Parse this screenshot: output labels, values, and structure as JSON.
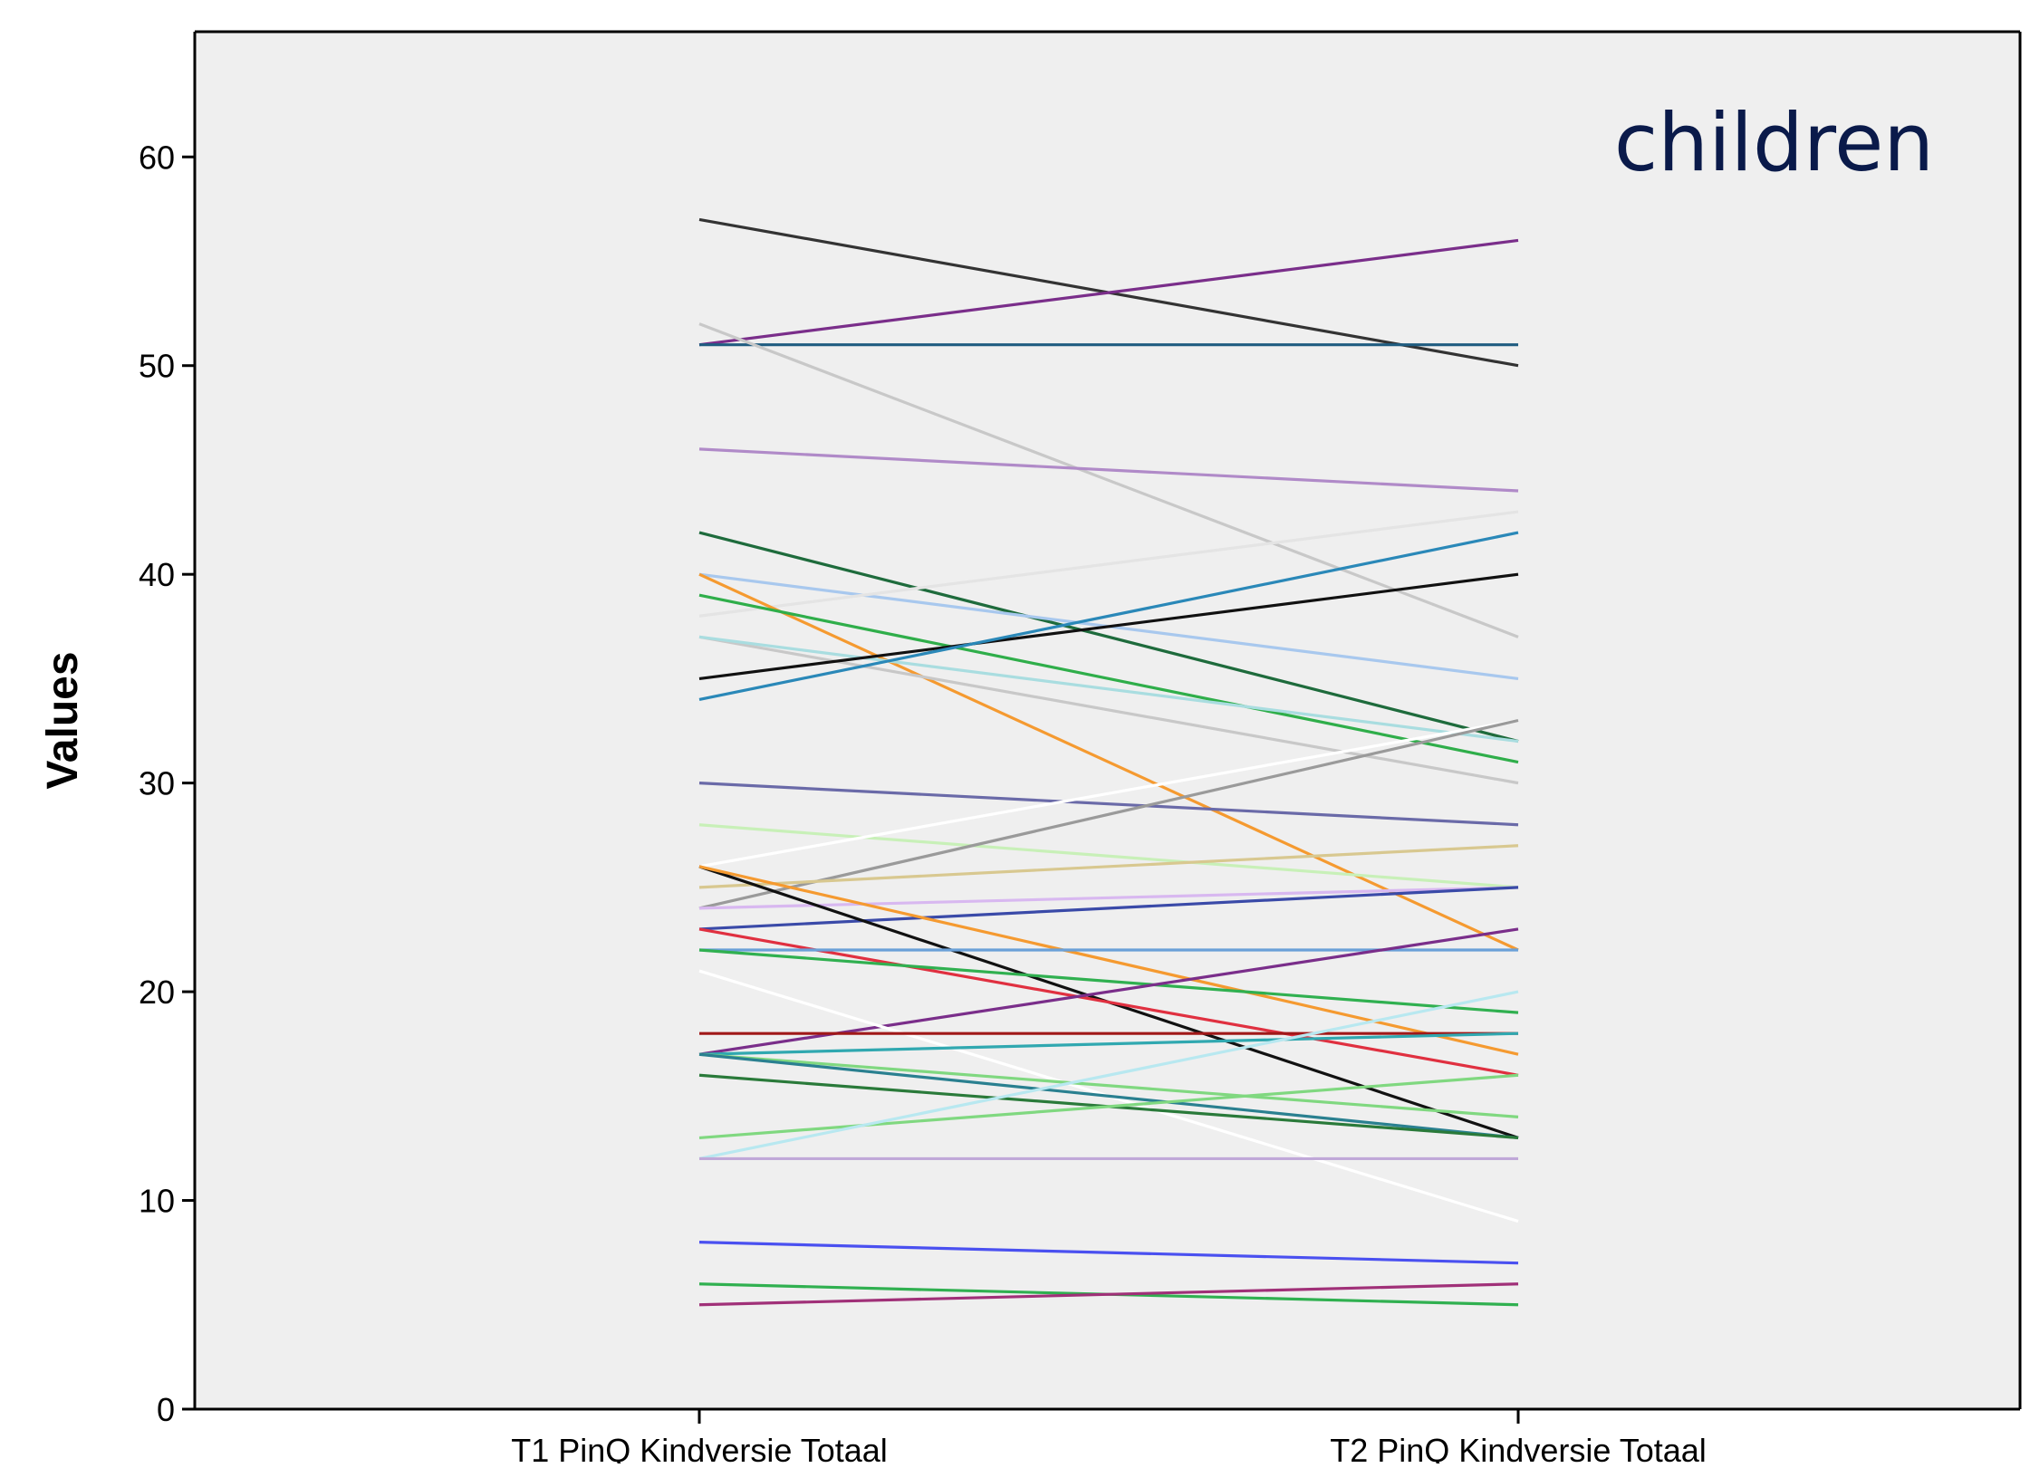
{
  "chart_data": {
    "type": "line",
    "title": "",
    "annotation": "children",
    "xlabel": "",
    "ylabel": "Values",
    "categories": [
      "T1 PinQ Kindversie Totaal",
      "T2 PinQ Kindversie Totaal"
    ],
    "ylim": [
      0,
      66
    ],
    "yticks": [
      0,
      10,
      20,
      30,
      40,
      50,
      60
    ],
    "grid": false,
    "legend": "none",
    "colors": {
      "plot_background": "#efefef",
      "axis": "#000000",
      "annotation": "#0a1a4a"
    },
    "series": [
      {
        "values": [
          57,
          50
        ],
        "color": "#333333"
      },
      {
        "values": [
          51,
          56
        ],
        "color": "#7a2e8a"
      },
      {
        "values": [
          51,
          51
        ],
        "color": "#1f5c80"
      },
      {
        "values": [
          52,
          37
        ],
        "color": "#c8c8c8"
      },
      {
        "values": [
          46,
          44
        ],
        "color": "#b08ac8"
      },
      {
        "values": [
          42,
          32
        ],
        "color": "#1e6b3c"
      },
      {
        "values": [
          40,
          35
        ],
        "color": "#a8c8ee"
      },
      {
        "values": [
          38,
          43
        ],
        "color": "#e4e4e4"
      },
      {
        "values": [
          40,
          22
        ],
        "color": "#f59a30"
      },
      {
        "values": [
          39,
          31
        ],
        "color": "#2fae4a"
      },
      {
        "values": [
          37,
          30
        ],
        "color": "#c8c8c8"
      },
      {
        "values": [
          37,
          32
        ],
        "color": "#a9dde0"
      },
      {
        "values": [
          35,
          40
        ],
        "color": "#111111"
      },
      {
        "values": [
          34,
          42
        ],
        "color": "#2a88b8"
      },
      {
        "values": [
          30,
          28
        ],
        "color": "#6a6aa8"
      },
      {
        "values": [
          28,
          25
        ],
        "color": "#c8f0b8"
      },
      {
        "values": [
          26,
          33
        ],
        "color": "#ffffff"
      },
      {
        "values": [
          24,
          33
        ],
        "color": "#9a9a9a"
      },
      {
        "values": [
          25,
          27
        ],
        "color": "#d8c890"
      },
      {
        "values": [
          24,
          25
        ],
        "color": "#d8b8f0"
      },
      {
        "values": [
          23,
          25
        ],
        "color": "#3a4aa8"
      },
      {
        "values": [
          26,
          13
        ],
        "color": "#111111"
      },
      {
        "values": [
          26,
          17
        ],
        "color": "#f59a30"
      },
      {
        "values": [
          23,
          16
        ],
        "color": "#e03040"
      },
      {
        "values": [
          22,
          22
        ],
        "color": "#6aa0d8"
      },
      {
        "values": [
          22,
          19
        ],
        "color": "#30b050"
      },
      {
        "values": [
          17,
          23
        ],
        "color": "#7a2e8a"
      },
      {
        "values": [
          21,
          9
        ],
        "color": "#ffffff"
      },
      {
        "values": [
          18,
          18
        ],
        "color": "#a01818"
      },
      {
        "values": [
          17,
          18
        ],
        "color": "#30a8b0"
      },
      {
        "values": [
          17,
          14
        ],
        "color": "#80d880"
      },
      {
        "values": [
          17,
          13
        ],
        "color": "#2a8090"
      },
      {
        "values": [
          16,
          13
        ],
        "color": "#2a7a3a"
      },
      {
        "values": [
          13,
          16
        ],
        "color": "#80d880"
      },
      {
        "values": [
          12,
          20
        ],
        "color": "#b8e8f0"
      },
      {
        "values": [
          12,
          12
        ],
        "color": "#c0a8d8"
      },
      {
        "values": [
          8,
          7
        ],
        "color": "#4a50f0"
      },
      {
        "values": [
          6,
          5
        ],
        "color": "#30b050"
      },
      {
        "values": [
          5,
          6
        ],
        "color": "#a03078"
      }
    ]
  }
}
